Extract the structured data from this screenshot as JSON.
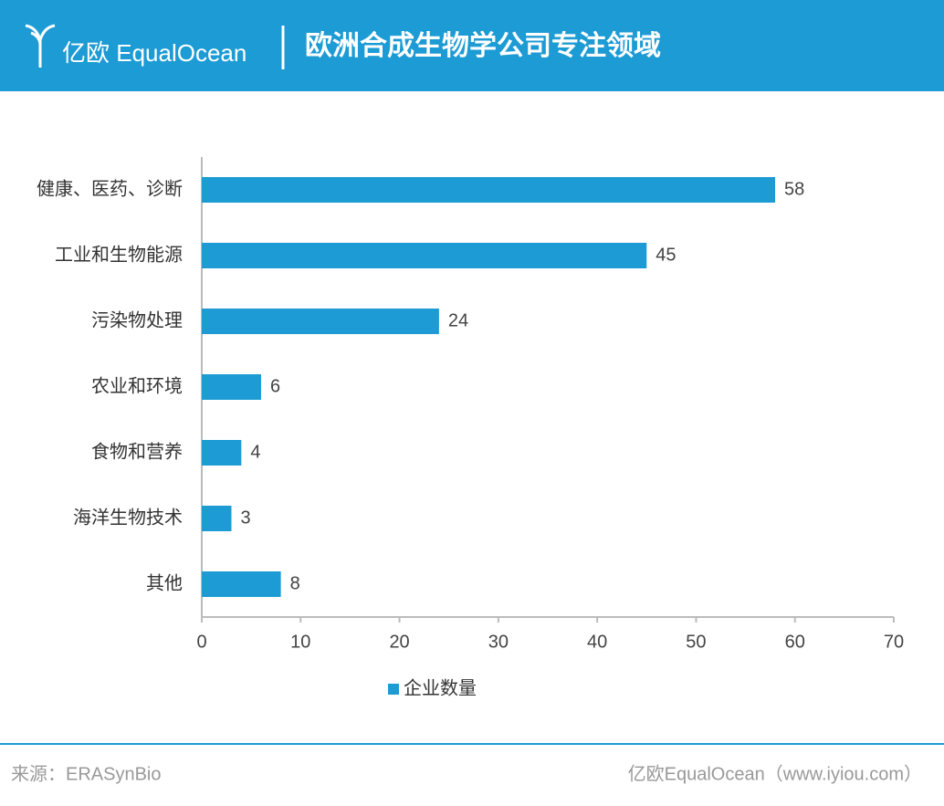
{
  "header": {
    "brand": "亿欧 EqualOcean"
  },
  "chart_data": {
    "type": "bar",
    "orientation": "horizontal",
    "title": "欧洲合成生物学公司专注领域",
    "categories": [
      "健康、医药、诊断",
      "工业和生物能源",
      "污染物处理",
      "农业和环境",
      "食物和营养",
      "海洋生物技术",
      "其他"
    ],
    "series": [
      {
        "name": "企业数量",
        "color": "#1c9bd4",
        "values": [
          58,
          45,
          24,
          6,
          4,
          3,
          8
        ]
      }
    ],
    "xlim": [
      0,
      70
    ],
    "xticks": [
      0,
      10,
      20,
      30,
      40,
      50,
      60,
      70
    ],
    "grid": false,
    "legend": "bottom"
  },
  "footer": {
    "source": "来源：ERASynBio",
    "credit": "亿欧EqualOcean（www.iyiou.com）"
  }
}
